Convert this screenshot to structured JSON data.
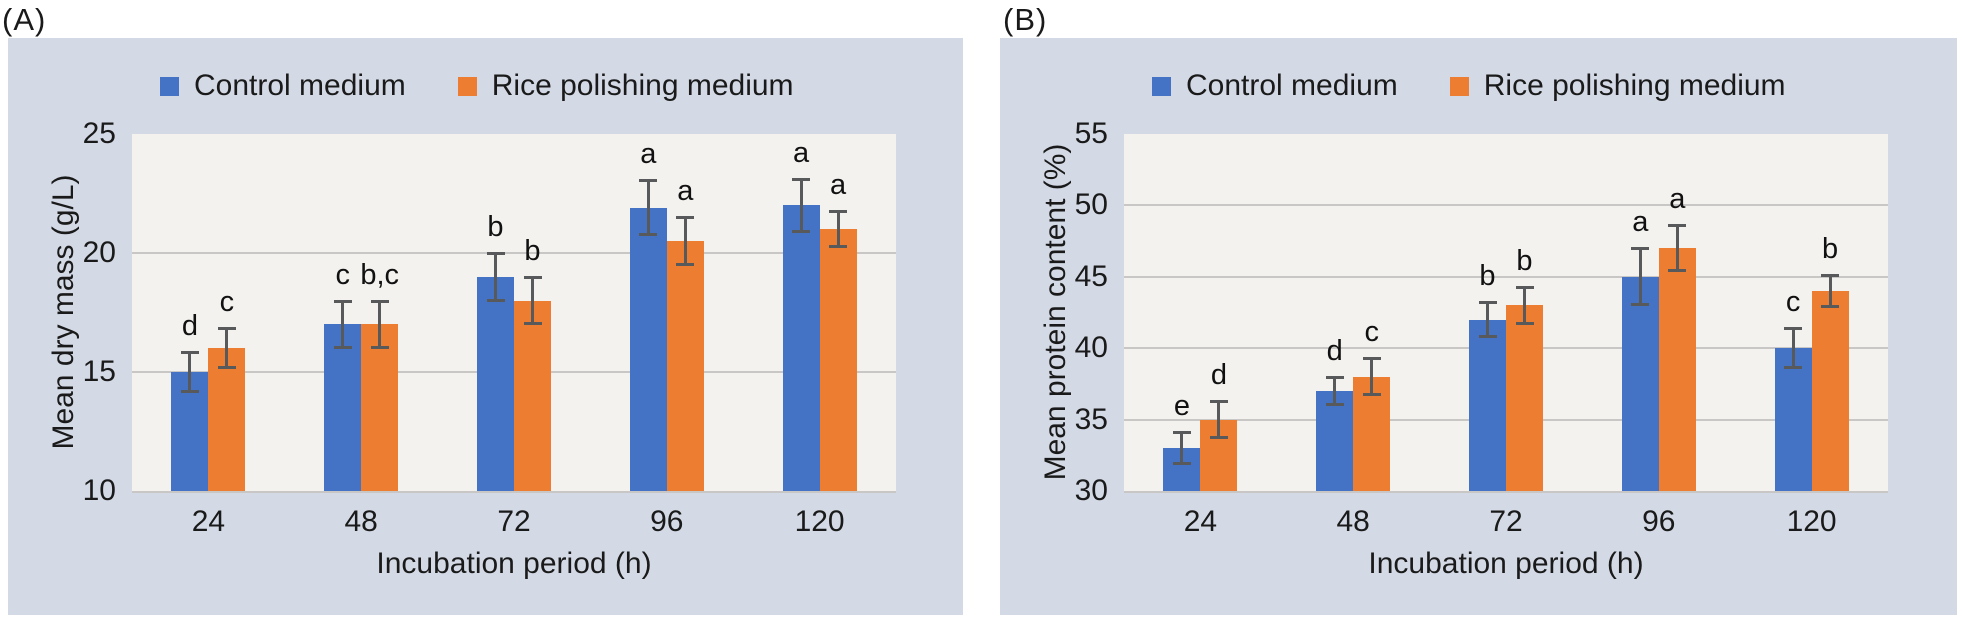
{
  "figure": {
    "panels": [
      {
        "label": "(A)"
      },
      {
        "label": "(B)"
      }
    ]
  },
  "colors": {
    "control_blue": "#4472C4",
    "rice_orange": "#ED7D31",
    "panel_background": "#D3DAE6",
    "plot_background": "#F3F2EF",
    "gridline": "#C8C7C5",
    "error_bar": "#58595B"
  },
  "chart_data": [
    {
      "type": "bar",
      "title": "",
      "categories": [
        "24",
        "48",
        "72",
        "96",
        "120"
      ],
      "xlabel": "Incubation period (h)",
      "ylabel": "Mean dry mass (g/L)",
      "ylim": [
        10,
        25
      ],
      "yticks": [
        10,
        15,
        20,
        25
      ],
      "grid": true,
      "legend_position": "top",
      "series": [
        {
          "name": "Control medium",
          "color": "#4472C4",
          "values": [
            15,
            17,
            19,
            21.9,
            22
          ],
          "errors": [
            0.85,
            1.0,
            1.0,
            1.15,
            1.1
          ],
          "letters": [
            "d",
            "c",
            "b",
            "a",
            "a"
          ]
        },
        {
          "name": "Rice polishing medium",
          "color": "#ED7D31",
          "values": [
            16,
            17,
            18,
            20.5,
            21
          ],
          "errors": [
            0.85,
            1.0,
            1.0,
            1.0,
            0.75
          ],
          "letters": [
            "c",
            "b,c",
            "b",
            "a",
            "a"
          ]
        }
      ]
    },
    {
      "type": "bar",
      "title": "",
      "categories": [
        "24",
        "48",
        "72",
        "96",
        "120"
      ],
      "xlabel": "Incubation period (h)",
      "ylabel": "Mean protein content (%)",
      "ylim": [
        30,
        55
      ],
      "yticks": [
        30,
        35,
        40,
        45,
        50,
        55
      ],
      "grid": true,
      "legend_position": "top",
      "series": [
        {
          "name": "Control medium",
          "color": "#4472C4",
          "values": [
            33,
            37,
            42,
            45,
            40
          ],
          "errors": [
            1.1,
            0.95,
            1.25,
            2.0,
            1.4
          ],
          "letters": [
            "e",
            "d",
            "b",
            "a",
            "c"
          ]
        },
        {
          "name": "Rice polishing medium",
          "color": "#ED7D31",
          "values": [
            35,
            38,
            43,
            47,
            44
          ],
          "errors": [
            1.3,
            1.3,
            1.3,
            1.6,
            1.1
          ],
          "letters": [
            "d",
            "c",
            "b",
            "a",
            "b"
          ]
        }
      ]
    }
  ]
}
